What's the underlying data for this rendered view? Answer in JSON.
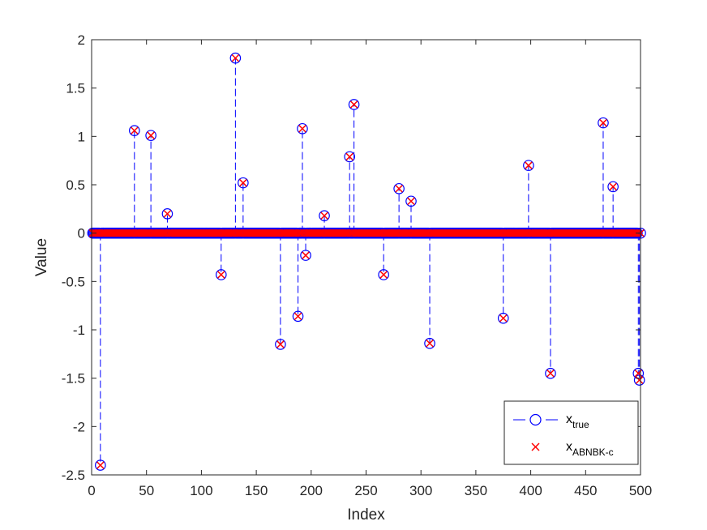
{
  "chart_data": {
    "type": "scatter",
    "xlabel": "Index",
    "ylabel": "Value",
    "xlim": [
      0,
      500
    ],
    "ylim": [
      -2.5,
      2
    ],
    "xticks": [
      0,
      50,
      100,
      150,
      200,
      250,
      300,
      350,
      400,
      450,
      500
    ],
    "yticks": [
      -2.5,
      -2,
      -1.5,
      -1,
      -0.5,
      0,
      0.5,
      1,
      1.5,
      2
    ],
    "ytick_labels": [
      "-2.5",
      "-2",
      "-1.5",
      "-1",
      "-0.5",
      "0",
      "0.5",
      "1",
      "1.5",
      "2"
    ],
    "n_points": 500,
    "legend_position": "bottom-right",
    "legend": [
      {
        "base": "x",
        "sub": "true"
      },
      {
        "base": "x",
        "sub": "ABNBK-c"
      }
    ],
    "colors": {
      "true": "#0000ff",
      "estimate": "#ff0000"
    },
    "nonzero": [
      {
        "x": 8,
        "y": -2.4
      },
      {
        "x": 39,
        "y": 1.06
      },
      {
        "x": 54,
        "y": 1.01
      },
      {
        "x": 69,
        "y": 0.2
      },
      {
        "x": 118,
        "y": -0.43
      },
      {
        "x": 131,
        "y": 1.81
      },
      {
        "x": 138,
        "y": 0.52
      },
      {
        "x": 172,
        "y": -1.15
      },
      {
        "x": 188,
        "y": -0.86
      },
      {
        "x": 192,
        "y": 1.08
      },
      {
        "x": 195,
        "y": -0.23
      },
      {
        "x": 212,
        "y": 0.18
      },
      {
        "x": 235,
        "y": 0.79
      },
      {
        "x": 239,
        "y": 1.33
      },
      {
        "x": 266,
        "y": -0.43
      },
      {
        "x": 280,
        "y": 0.46
      },
      {
        "x": 291,
        "y": 0.33
      },
      {
        "x": 308,
        "y": -1.14
      },
      {
        "x": 375,
        "y": -0.88
      },
      {
        "x": 398,
        "y": 0.7
      },
      {
        "x": 418,
        "y": -1.45
      },
      {
        "x": 466,
        "y": 1.14
      },
      {
        "x": 475,
        "y": 0.48
      },
      {
        "x": 498,
        "y": -1.45
      },
      {
        "x": 499,
        "y": -1.52
      }
    ]
  }
}
